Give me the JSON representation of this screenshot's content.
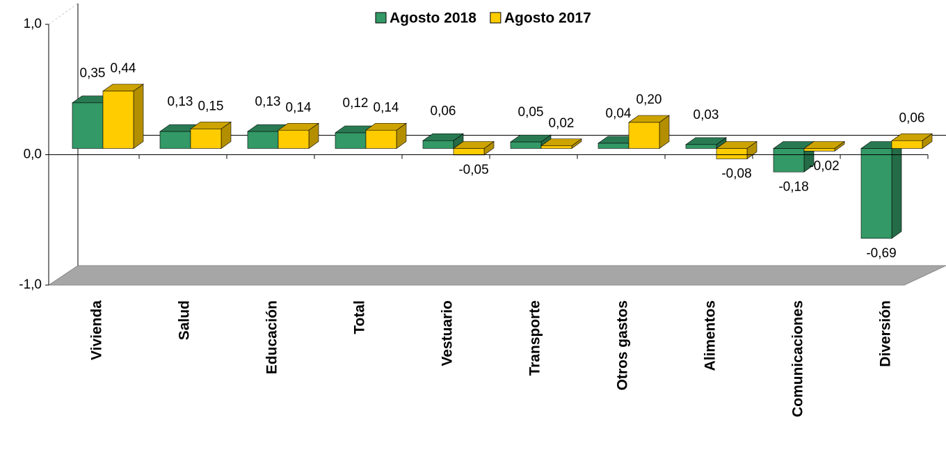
{
  "chart_data": {
    "type": "bar3d",
    "categories": [
      "Vivienda",
      "Salud",
      "Educación",
      "Total",
      "Vestuario",
      "Transporte",
      "Otros gastos",
      "Alimentos",
      "Comunicaciones",
      "Diversión"
    ],
    "series": [
      {
        "name": "Agosto 2018",
        "color": "#339966",
        "values": [
          0.35,
          0.13,
          0.13,
          0.12,
          0.06,
          0.05,
          0.04,
          0.03,
          -0.18,
          -0.69
        ],
        "value_labels": [
          "0,35",
          "0,13",
          "0,13",
          "0,12",
          "0,06",
          "0,05",
          "0,04",
          "0,03",
          "-0,18",
          "-0,69"
        ]
      },
      {
        "name": "Agosto 2017",
        "color": "#ffcc00",
        "values": [
          0.44,
          0.15,
          0.14,
          0.14,
          -0.05,
          0.02,
          0.2,
          -0.08,
          -0.02,
          0.06
        ],
        "value_labels": [
          "0,44",
          "0,15",
          "0,14",
          "0,14",
          "-0,05",
          "0,02",
          "0,20",
          "-0,08",
          "-0,02",
          "0,06"
        ]
      }
    ],
    "ylim": [
      -1,
      1
    ],
    "yticks": [
      {
        "value": -1,
        "label": "-1,0"
      },
      {
        "value": 0,
        "label": "0,0"
      },
      {
        "value": 1,
        "label": "1,0"
      }
    ],
    "legend": "top"
  }
}
